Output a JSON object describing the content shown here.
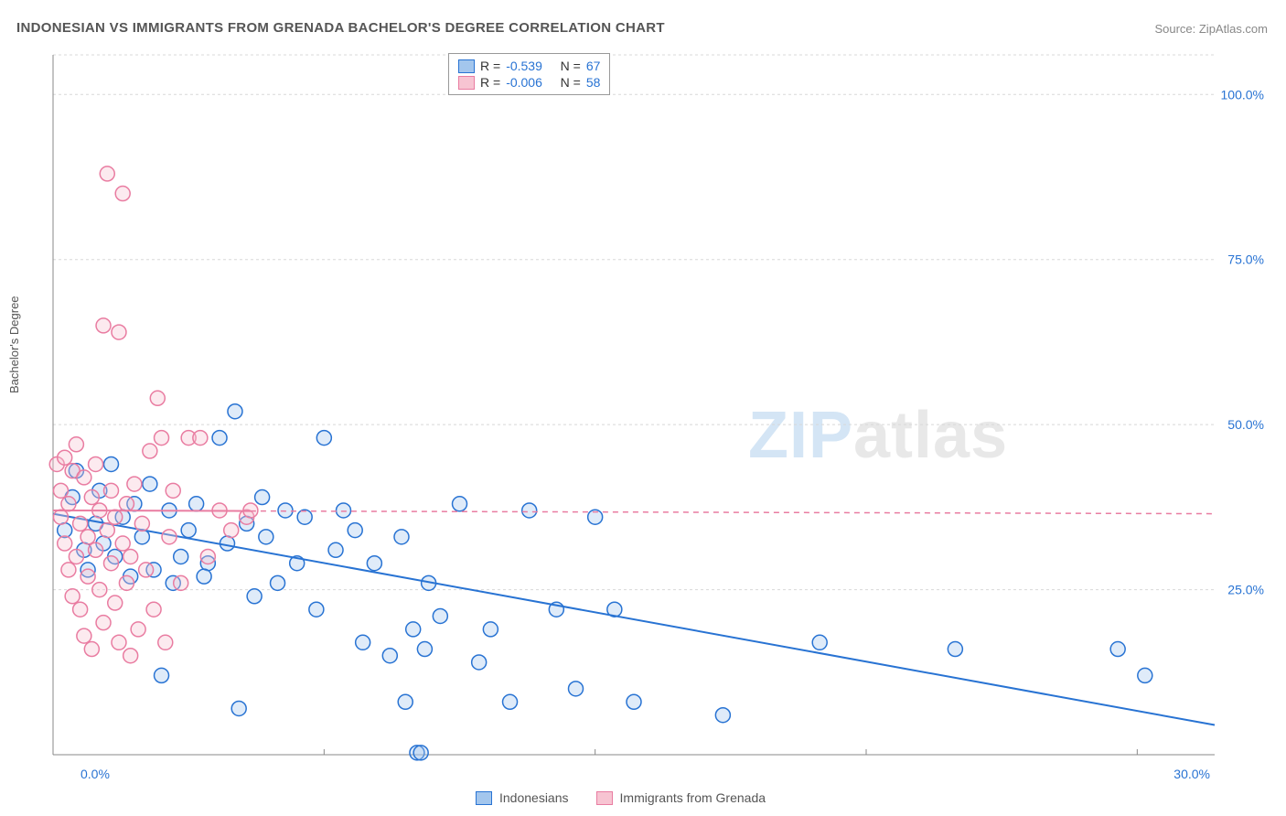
{
  "title": "INDONESIAN VS IMMIGRANTS FROM GRENADA BACHELOR'S DEGREE CORRELATION CHART",
  "source_label": "Source: ",
  "source_name": "ZipAtlas.com",
  "y_axis_label": "Bachelor's Degree",
  "watermark_zip": "ZIP",
  "watermark_atlas": "atlas",
  "chart": {
    "type": "scatter",
    "xlim": [
      0,
      30
    ],
    "ylim": [
      0,
      106
    ],
    "x_ticks": [
      0,
      30
    ],
    "x_tick_labels": [
      "0.0%",
      "30.0%"
    ],
    "y_ticks": [
      25,
      50,
      75,
      100
    ],
    "y_tick_labels": [
      "25.0%",
      "50.0%",
      "75.0%",
      "100.0%"
    ],
    "grid_color": "#d8d8d8",
    "axis_color": "#888888",
    "background_color": "#ffffff",
    "marker_radius": 8,
    "marker_stroke_width": 1.5,
    "marker_fill_opacity": 0.35,
    "line_width": 2,
    "series": [
      {
        "name": "Indonesians",
        "color_stroke": "#2873d3",
        "color_fill": "#a3c6ed",
        "R": "-0.539",
        "N": "67",
        "trend": {
          "x1": 0,
          "y1": 36.5,
          "x2": 30,
          "y2": 4.5,
          "solid_until_x": 30
        },
        "points": [
          [
            0.3,
            34
          ],
          [
            0.5,
            39
          ],
          [
            0.6,
            43
          ],
          [
            0.8,
            31
          ],
          [
            0.9,
            28
          ],
          [
            1.1,
            35
          ],
          [
            1.2,
            40
          ],
          [
            1.3,
            32
          ],
          [
            1.5,
            44
          ],
          [
            1.6,
            30
          ],
          [
            1.8,
            36
          ],
          [
            2.0,
            27
          ],
          [
            2.1,
            38
          ],
          [
            2.3,
            33
          ],
          [
            2.5,
            41
          ],
          [
            2.6,
            28
          ],
          [
            2.8,
            12
          ],
          [
            3.0,
            37
          ],
          [
            3.1,
            26
          ],
          [
            3.3,
            30
          ],
          [
            3.5,
            34
          ],
          [
            3.7,
            38
          ],
          [
            4.0,
            29
          ],
          [
            4.3,
            48
          ],
          [
            4.5,
            32
          ],
          [
            4.7,
            52
          ],
          [
            4.8,
            7
          ],
          [
            5.0,
            35
          ],
          [
            5.2,
            24
          ],
          [
            5.5,
            33
          ],
          [
            5.8,
            26
          ],
          [
            6.0,
            37
          ],
          [
            6.3,
            29
          ],
          [
            6.5,
            36
          ],
          [
            6.8,
            22
          ],
          [
            7.0,
            48
          ],
          [
            7.3,
            31
          ],
          [
            7.5,
            37
          ],
          [
            7.8,
            34
          ],
          [
            8.0,
            17
          ],
          [
            8.3,
            29
          ],
          [
            8.7,
            15
          ],
          [
            9.0,
            33
          ],
          [
            9.1,
            8
          ],
          [
            9.3,
            19
          ],
          [
            9.4,
            0.3
          ],
          [
            9.5,
            0.3
          ],
          [
            9.6,
            16
          ],
          [
            9.7,
            26
          ],
          [
            10.0,
            21
          ],
          [
            10.5,
            38
          ],
          [
            11.0,
            14
          ],
          [
            11.3,
            19
          ],
          [
            11.8,
            8
          ],
          [
            12.3,
            37
          ],
          [
            13.0,
            22
          ],
          [
            13.5,
            10
          ],
          [
            14.0,
            36
          ],
          [
            14.5,
            22
          ],
          [
            15.0,
            8
          ],
          [
            17.3,
            6
          ],
          [
            19.8,
            17
          ],
          [
            23.3,
            16
          ],
          [
            27.5,
            16
          ],
          [
            28.2,
            12
          ],
          [
            5.4,
            39
          ],
          [
            3.9,
            27
          ]
        ]
      },
      {
        "name": "Immigrants from Grenada",
        "color_stroke": "#e97ca1",
        "color_fill": "#f7c4d2",
        "R": "-0.006",
        "N": "58",
        "trend": {
          "x1": 0,
          "y1": 37,
          "x2": 30,
          "y2": 36.5,
          "solid_until_x": 5.1
        },
        "points": [
          [
            0.1,
            44
          ],
          [
            0.2,
            36
          ],
          [
            0.2,
            40
          ],
          [
            0.3,
            32
          ],
          [
            0.3,
            45
          ],
          [
            0.4,
            28
          ],
          [
            0.4,
            38
          ],
          [
            0.5,
            43
          ],
          [
            0.5,
            24
          ],
          [
            0.6,
            47
          ],
          [
            0.6,
            30
          ],
          [
            0.7,
            35
          ],
          [
            0.7,
            22
          ],
          [
            0.8,
            42
          ],
          [
            0.8,
            18
          ],
          [
            0.9,
            33
          ],
          [
            0.9,
            27
          ],
          [
            1.0,
            39
          ],
          [
            1.0,
            16
          ],
          [
            1.1,
            31
          ],
          [
            1.1,
            44
          ],
          [
            1.2,
            25
          ],
          [
            1.2,
            37
          ],
          [
            1.3,
            65
          ],
          [
            1.3,
            20
          ],
          [
            1.4,
            34
          ],
          [
            1.4,
            88
          ],
          [
            1.5,
            29
          ],
          [
            1.5,
            40
          ],
          [
            1.6,
            23
          ],
          [
            1.6,
            36
          ],
          [
            1.7,
            64
          ],
          [
            1.7,
            17
          ],
          [
            1.8,
            32
          ],
          [
            1.8,
            85
          ],
          [
            1.9,
            26
          ],
          [
            1.9,
            38
          ],
          [
            2.0,
            15
          ],
          [
            2.0,
            30
          ],
          [
            2.1,
            41
          ],
          [
            2.2,
            19
          ],
          [
            2.3,
            35
          ],
          [
            2.4,
            28
          ],
          [
            2.5,
            46
          ],
          [
            2.6,
            22
          ],
          [
            2.7,
            54
          ],
          [
            2.8,
            48
          ],
          [
            2.9,
            17
          ],
          [
            3.0,
            33
          ],
          [
            3.1,
            40
          ],
          [
            3.3,
            26
          ],
          [
            3.5,
            48
          ],
          [
            3.8,
            48
          ],
          [
            4.0,
            30
          ],
          [
            4.3,
            37
          ],
          [
            4.6,
            34
          ],
          [
            5.0,
            36
          ],
          [
            5.1,
            37
          ]
        ]
      }
    ]
  },
  "legend_top": {
    "R_label": "R =",
    "N_label": "N ="
  },
  "legend_bottom": {
    "items": [
      "Indonesians",
      "Immigrants from Grenada"
    ]
  }
}
